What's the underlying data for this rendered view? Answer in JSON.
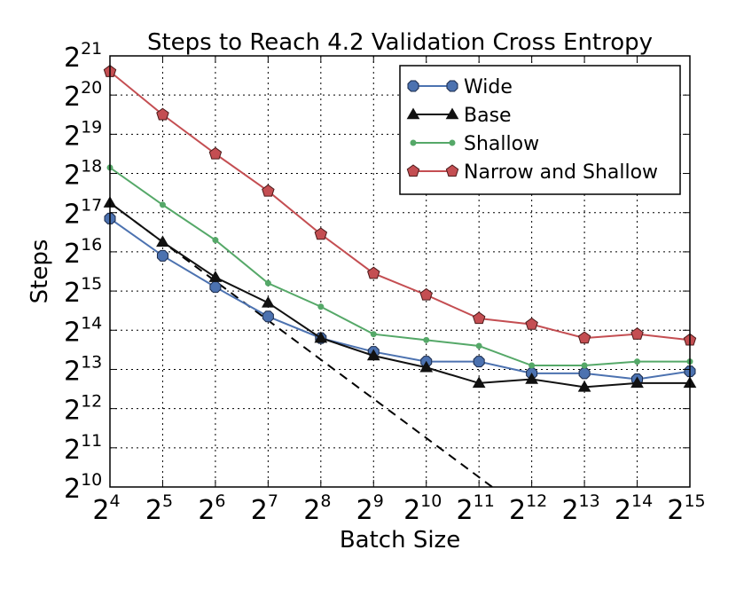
{
  "chart_data": {
    "type": "line",
    "title": "Steps to Reach 4.2 Validation Cross Entropy",
    "xlabel": "Batch Size",
    "ylabel": "Steps",
    "x_scale": "log2",
    "y_scale": "log2",
    "x_exponent_range": [
      4,
      15
    ],
    "y_exponent_range": [
      10,
      21
    ],
    "x_ticks": [
      {
        "base": "2",
        "exp": "4"
      },
      {
        "base": "2",
        "exp": "5"
      },
      {
        "base": "2",
        "exp": "6"
      },
      {
        "base": "2",
        "exp": "7"
      },
      {
        "base": "2",
        "exp": "8"
      },
      {
        "base": "2",
        "exp": "9"
      },
      {
        "base": "2",
        "exp": "10"
      },
      {
        "base": "2",
        "exp": "11"
      },
      {
        "base": "2",
        "exp": "12"
      },
      {
        "base": "2",
        "exp": "13"
      },
      {
        "base": "2",
        "exp": "14"
      },
      {
        "base": "2",
        "exp": "15"
      }
    ],
    "y_ticks": [
      {
        "base": "2",
        "exp": "10"
      },
      {
        "base": "2",
        "exp": "11"
      },
      {
        "base": "2",
        "exp": "12"
      },
      {
        "base": "2",
        "exp": "13"
      },
      {
        "base": "2",
        "exp": "14"
      },
      {
        "base": "2",
        "exp": "15"
      },
      {
        "base": "2",
        "exp": "16"
      },
      {
        "base": "2",
        "exp": "17"
      },
      {
        "base": "2",
        "exp": "18"
      },
      {
        "base": "2",
        "exp": "19"
      },
      {
        "base": "2",
        "exp": "20"
      },
      {
        "base": "2",
        "exp": "21"
      }
    ],
    "grid": true,
    "legend_position": "top-right",
    "x_log2": [
      4,
      5,
      6,
      7,
      8,
      9,
      10,
      11,
      12,
      13,
      14,
      15
    ],
    "series": [
      {
        "name": "Wide",
        "color": "#4c72b0",
        "marker": "octagon",
        "y_log2": [
          16.85,
          15.9,
          15.1,
          14.35,
          13.8,
          13.45,
          13.2,
          13.2,
          12.9,
          12.9,
          12.75,
          12.95
        ]
      },
      {
        "name": "Base",
        "color": "#111111",
        "marker": "triangle",
        "y_log2": [
          17.25,
          16.25,
          15.35,
          14.7,
          13.8,
          13.35,
          13.05,
          12.65,
          12.75,
          12.55,
          12.65,
          12.65
        ]
      },
      {
        "name": "Shallow",
        "color": "#55a868",
        "marker": "dot",
        "y_log2": [
          18.15,
          17.2,
          16.3,
          15.2,
          14.6,
          13.9,
          13.75,
          13.6,
          13.1,
          13.1,
          13.2,
          13.2
        ]
      },
      {
        "name": "Narrow and Shallow",
        "color": "#c44e52",
        "marker": "pentagon",
        "y_log2": [
          20.6,
          19.5,
          18.5,
          17.55,
          16.45,
          15.45,
          14.9,
          14.3,
          14.15,
          13.8,
          13.9,
          13.75
        ]
      }
    ],
    "reference_line": {
      "style": "dashed",
      "color": "#000000",
      "x_log2": [
        4,
        11.5
      ],
      "y_log2": [
        17.25,
        9.75
      ]
    }
  }
}
